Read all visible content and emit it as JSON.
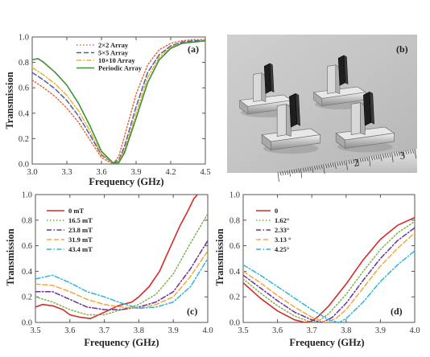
{
  "chart_data": [
    {
      "panel_label": "(a)",
      "type": "line",
      "xlabel": "Frequency (GHz)",
      "ylabel": "Transmission",
      "xlim": [
        3.0,
        4.5
      ],
      "ylim": [
        0.0,
        1.0
      ],
      "xticks": [
        "3.0",
        "3.3",
        "3.6",
        "3.9",
        "4.2",
        "4.5"
      ],
      "yticks": [
        "0.0",
        "0.2",
        "0.4",
        "0.6",
        "0.8",
        "1.0"
      ],
      "legend_position": "top-left",
      "series": [
        {
          "name": "2×2 Array",
          "color": "#e8693a",
          "dash": "dotted",
          "x": [
            3.0,
            3.1,
            3.2,
            3.3,
            3.4,
            3.5,
            3.6,
            3.7,
            3.75,
            3.8,
            3.9,
            4.0,
            4.1,
            4.2,
            4.3,
            4.4,
            4.5
          ],
          "y": [
            0.66,
            0.6,
            0.53,
            0.44,
            0.33,
            0.19,
            0.05,
            0.0,
            0.06,
            0.22,
            0.55,
            0.78,
            0.9,
            0.95,
            0.97,
            0.98,
            0.98
          ]
        },
        {
          "name": "5×5 Array",
          "color": "#4a5fa8",
          "dash": "dashed",
          "x": [
            3.0,
            3.1,
            3.2,
            3.3,
            3.4,
            3.5,
            3.6,
            3.7,
            3.75,
            3.8,
            3.9,
            4.0,
            4.1,
            4.2,
            4.3,
            4.4,
            4.5
          ],
          "y": [
            0.72,
            0.66,
            0.59,
            0.5,
            0.38,
            0.23,
            0.07,
            0.01,
            0.03,
            0.14,
            0.45,
            0.72,
            0.86,
            0.93,
            0.96,
            0.97,
            0.97
          ]
        },
        {
          "name": "10×10 Array",
          "color": "#f2b134",
          "dash": "dashdot",
          "x": [
            3.0,
            3.1,
            3.2,
            3.3,
            3.4,
            3.5,
            3.6,
            3.7,
            3.75,
            3.8,
            3.9,
            4.0,
            4.1,
            4.2,
            4.3,
            4.4,
            4.5
          ],
          "y": [
            0.76,
            0.7,
            0.63,
            0.54,
            0.42,
            0.26,
            0.08,
            0.01,
            0.02,
            0.11,
            0.4,
            0.68,
            0.84,
            0.92,
            0.95,
            0.96,
            0.97
          ]
        },
        {
          "name": "Periodic Array",
          "color": "#3f8f3a",
          "dash": "solid",
          "x": [
            3.0,
            3.05,
            3.1,
            3.2,
            3.3,
            3.4,
            3.5,
            3.6,
            3.7,
            3.75,
            3.8,
            3.9,
            4.0,
            4.1,
            4.2,
            4.3,
            4.4,
            4.5
          ],
          "y": [
            0.82,
            0.83,
            0.8,
            0.72,
            0.62,
            0.48,
            0.3,
            0.1,
            0.01,
            0.01,
            0.09,
            0.36,
            0.64,
            0.82,
            0.91,
            0.95,
            0.96,
            0.97
          ]
        }
      ]
    },
    {
      "panel_label": "(b)",
      "type": "photo",
      "ruler_numbers": [
        "2",
        "3"
      ]
    },
    {
      "panel_label": "(c)",
      "type": "line",
      "xlabel": "Frequency (GHz)",
      "ylabel": "Transmission",
      "xlim": [
        3.5,
        4.0
      ],
      "ylim": [
        0.0,
        1.0
      ],
      "xticks": [
        "3.5",
        "3.6",
        "3.7",
        "3.8",
        "3.9",
        "4.0"
      ],
      "yticks": [
        "0.0",
        "0.2",
        "0.4",
        "0.6",
        "0.8",
        "1.0"
      ],
      "legend_position": "top-left",
      "series": [
        {
          "name": "0 mT",
          "color": "#d42a2a",
          "dash": "solid",
          "x": [
            3.5,
            3.52,
            3.55,
            3.58,
            3.6,
            3.63,
            3.66,
            3.7,
            3.74,
            3.78,
            3.8,
            3.83,
            3.86,
            3.88,
            3.9,
            3.92,
            3.94,
            3.96,
            3.97
          ],
          "y": [
            0.12,
            0.14,
            0.13,
            0.1,
            0.06,
            0.04,
            0.03,
            0.08,
            0.13,
            0.16,
            0.2,
            0.28,
            0.4,
            0.52,
            0.64,
            0.76,
            0.86,
            0.97,
            1.0
          ]
        },
        {
          "name": "16.5 mT",
          "color": "#7ab648",
          "dash": "dotted",
          "x": [
            3.5,
            3.55,
            3.6,
            3.65,
            3.7,
            3.75,
            3.8,
            3.85,
            3.9,
            3.95,
            4.0
          ],
          "y": [
            0.2,
            0.16,
            0.1,
            0.06,
            0.06,
            0.1,
            0.14,
            0.22,
            0.38,
            0.62,
            0.85
          ]
        },
        {
          "name": "23.8 mT",
          "color": "#6b2fa0",
          "dash": "dashdot",
          "x": [
            3.5,
            3.55,
            3.6,
            3.65,
            3.7,
            3.75,
            3.8,
            3.85,
            3.9,
            3.95,
            4.0
          ],
          "y": [
            0.24,
            0.24,
            0.18,
            0.12,
            0.1,
            0.1,
            0.12,
            0.16,
            0.24,
            0.42,
            0.64
          ]
        },
        {
          "name": "31.9 mT",
          "color": "#f2a93b",
          "dash": "dashed",
          "x": [
            3.5,
            3.55,
            3.6,
            3.65,
            3.7,
            3.75,
            3.8,
            3.85,
            3.9,
            3.95,
            4.0
          ],
          "y": [
            0.3,
            0.29,
            0.24,
            0.18,
            0.14,
            0.12,
            0.11,
            0.14,
            0.2,
            0.36,
            0.56
          ]
        },
        {
          "name": "43.4 mT",
          "color": "#2cb6e0",
          "dash": "dashdot",
          "x": [
            3.5,
            3.55,
            3.6,
            3.65,
            3.7,
            3.75,
            3.8,
            3.85,
            3.9,
            3.95,
            4.0
          ],
          "y": [
            0.34,
            0.37,
            0.31,
            0.24,
            0.2,
            0.15,
            0.11,
            0.12,
            0.16,
            0.28,
            0.5
          ]
        }
      ]
    },
    {
      "panel_label": "(d)",
      "type": "line",
      "xlabel": "Frequency (GHz)",
      "ylabel": "Transmission",
      "xlim": [
        3.5,
        4.0
      ],
      "ylim": [
        0.0,
        1.0
      ],
      "xticks": [
        "3.5",
        "3.6",
        "3.7",
        "3.8",
        "3.9",
        "4.0"
      ],
      "yticks": [
        "0.0",
        "0.2",
        "0.4",
        "0.6",
        "0.8",
        "1.0"
      ],
      "legend_position": "top-left",
      "series": [
        {
          "name": "0",
          "color": "#d42a2a",
          "dash": "solid",
          "x": [
            3.5,
            3.55,
            3.6,
            3.65,
            3.68,
            3.7,
            3.72,
            3.75,
            3.8,
            3.85,
            3.9,
            3.95,
            4.0
          ],
          "y": [
            0.31,
            0.19,
            0.09,
            0.02,
            0.0,
            0.01,
            0.05,
            0.13,
            0.3,
            0.49,
            0.65,
            0.76,
            0.82
          ]
        },
        {
          "name": "1.62°",
          "color": "#7ab648",
          "dash": "dotted",
          "x": [
            3.5,
            3.55,
            3.6,
            3.65,
            3.7,
            3.72,
            3.75,
            3.8,
            3.85,
            3.9,
            3.95,
            4.0
          ],
          "y": [
            0.34,
            0.23,
            0.13,
            0.05,
            0.0,
            0.01,
            0.07,
            0.22,
            0.4,
            0.57,
            0.7,
            0.79
          ]
        },
        {
          "name": "2.33°",
          "color": "#6b2fa0",
          "dash": "dashdot",
          "x": [
            3.5,
            3.55,
            3.6,
            3.65,
            3.7,
            3.73,
            3.76,
            3.8,
            3.85,
            3.9,
            3.95,
            4.0
          ],
          "y": [
            0.37,
            0.27,
            0.17,
            0.08,
            0.02,
            0.0,
            0.04,
            0.15,
            0.33,
            0.5,
            0.64,
            0.74
          ]
        },
        {
          "name": "3.13 °",
          "color": "#f2a93b",
          "dash": "dashed",
          "x": [
            3.5,
            3.55,
            3.6,
            3.65,
            3.7,
            3.74,
            3.77,
            3.8,
            3.85,
            3.9,
            3.95,
            4.0
          ],
          "y": [
            0.4,
            0.31,
            0.21,
            0.12,
            0.04,
            0.0,
            0.03,
            0.1,
            0.27,
            0.44,
            0.58,
            0.7
          ]
        },
        {
          "name": "4.25°",
          "color": "#2cb6e0",
          "dash": "dashdot",
          "x": [
            3.5,
            3.55,
            3.6,
            3.65,
            3.7,
            3.75,
            3.78,
            3.8,
            3.85,
            3.9,
            3.95,
            4.0
          ],
          "y": [
            0.45,
            0.37,
            0.28,
            0.19,
            0.1,
            0.02,
            0.0,
            0.03,
            0.16,
            0.32,
            0.45,
            0.56
          ]
        }
      ]
    }
  ]
}
